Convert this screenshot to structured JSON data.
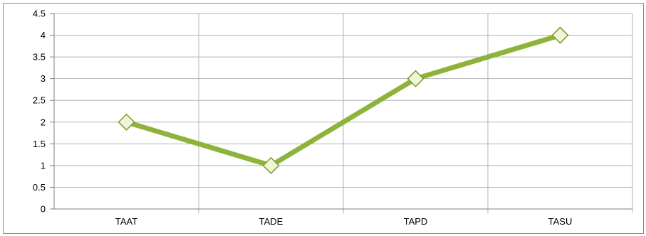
{
  "chart_data": {
    "type": "line",
    "categories": [
      "TAAT",
      "TADE",
      "TAPD",
      "TASU"
    ],
    "series": [
      {
        "values": [
          2,
          1,
          3,
          4
        ],
        "color": "#8db33a"
      }
    ],
    "ylim": [
      0,
      4.5
    ],
    "yticks": [
      "0",
      "0.5",
      "1",
      "1.5",
      "2",
      "2.5",
      "3",
      "3.5",
      "4",
      "4.5"
    ],
    "grid": true,
    "legend": "none",
    "marker": "diamond",
    "colors": {
      "gridline": "#b3b3b3",
      "marker_fill": "#eef6d6",
      "marker_stroke": "#7a9a30"
    }
  }
}
